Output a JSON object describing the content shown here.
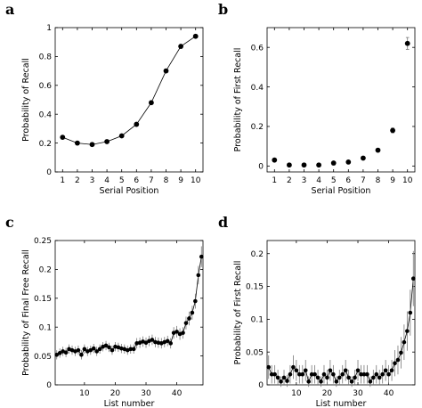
{
  "chart_data": [
    {
      "panel": "a",
      "type": "line",
      "xlabel": "Serial Position",
      "ylabel": "Probability of Recall",
      "xlim": [
        0.5,
        10.5
      ],
      "ylim": [
        0,
        1
      ],
      "xticks": [
        1,
        2,
        3,
        4,
        5,
        6,
        7,
        8,
        9,
        10
      ],
      "yticks": [
        0,
        0.2,
        0.4,
        0.6,
        0.8,
        1
      ],
      "ytick_labels": [
        "0",
        "0.2",
        "0.4",
        "0.6",
        "0.8",
        "1"
      ],
      "x": [
        1,
        2,
        3,
        4,
        5,
        6,
        7,
        8,
        9,
        10
      ],
      "y": [
        0.24,
        0.2,
        0.19,
        0.21,
        0.25,
        0.33,
        0.48,
        0.7,
        0.87,
        0.94
      ],
      "error": [
        0.012,
        0.01,
        0.01,
        0.01,
        0.01,
        0.012,
        0.012,
        0.012,
        0.01,
        0.01
      ],
      "connect": true,
      "grid": false
    },
    {
      "panel": "b",
      "type": "scatter",
      "xlabel": "Serial Position",
      "ylabel": "Probability of First Recall",
      "xlim": [
        0.5,
        10.5
      ],
      "ylim": [
        -0.03,
        0.7
      ],
      "xticks": [
        1,
        2,
        3,
        4,
        5,
        6,
        7,
        8,
        9,
        10
      ],
      "yticks": [
        0,
        0.2,
        0.4,
        0.6
      ],
      "ytick_labels": [
        "0",
        "0.2",
        "0.4",
        "0.6"
      ],
      "x": [
        1,
        2,
        3,
        4,
        5,
        6,
        7,
        8,
        9,
        10
      ],
      "y": [
        0.03,
        0.005,
        0.005,
        0.005,
        0.015,
        0.02,
        0.04,
        0.08,
        0.18,
        0.62
      ],
      "error": [
        0.004,
        0.003,
        0.003,
        0.003,
        0.004,
        0.004,
        0.006,
        0.008,
        0.012,
        0.03
      ],
      "connect": false,
      "grid": false
    },
    {
      "panel": "c",
      "type": "line",
      "xlabel": "List number",
      "ylabel": "Probability of Final Free Recall",
      "xlim": [
        0.5,
        48.5
      ],
      "ylim": [
        0,
        0.25
      ],
      "xticks": [
        10,
        20,
        30,
        40
      ],
      "yticks": [
        0,
        0.05,
        0.1,
        0.15,
        0.2,
        0.25
      ],
      "ytick_labels": [
        "0",
        "0.05",
        "0.1",
        "0.15",
        "0.2",
        "0.25"
      ],
      "x": [
        1,
        2,
        3,
        4,
        5,
        6,
        7,
        8,
        9,
        10,
        11,
        12,
        13,
        14,
        15,
        16,
        17,
        18,
        19,
        20,
        21,
        22,
        23,
        24,
        25,
        26,
        27,
        28,
        29,
        30,
        31,
        32,
        33,
        34,
        35,
        36,
        37,
        38,
        39,
        40,
        41,
        42,
        43,
        44,
        45,
        46,
        47,
        48
      ],
      "y": [
        0.052,
        0.055,
        0.058,
        0.056,
        0.062,
        0.06,
        0.058,
        0.06,
        0.052,
        0.062,
        0.058,
        0.06,
        0.063,
        0.058,
        0.062,
        0.066,
        0.068,
        0.065,
        0.06,
        0.066,
        0.065,
        0.063,
        0.062,
        0.06,
        0.062,
        0.062,
        0.072,
        0.073,
        0.075,
        0.073,
        0.076,
        0.078,
        0.074,
        0.073,
        0.072,
        0.074,
        0.076,
        0.072,
        0.09,
        0.092,
        0.088,
        0.09,
        0.107,
        0.115,
        0.125,
        0.145,
        0.19,
        0.222
      ],
      "error": [
        0.008,
        0.008,
        0.008,
        0.008,
        0.008,
        0.008,
        0.008,
        0.008,
        0.008,
        0.008,
        0.008,
        0.008,
        0.008,
        0.008,
        0.008,
        0.008,
        0.008,
        0.008,
        0.008,
        0.008,
        0.008,
        0.008,
        0.008,
        0.008,
        0.008,
        0.008,
        0.009,
        0.009,
        0.009,
        0.009,
        0.009,
        0.009,
        0.009,
        0.009,
        0.009,
        0.009,
        0.009,
        0.009,
        0.01,
        0.01,
        0.01,
        0.01,
        0.011,
        0.012,
        0.012,
        0.013,
        0.016,
        0.018
      ],
      "connect": true,
      "grid": false
    },
    {
      "panel": "d",
      "type": "line",
      "xlabel": "List number",
      "ylabel": "Probability of First Recall",
      "xlim": [
        0.5,
        48.5
      ],
      "ylim": [
        0,
        0.22
      ],
      "xticks": [
        10,
        20,
        30,
        40
      ],
      "yticks": [
        0,
        0.05,
        0.1,
        0.15,
        0.2
      ],
      "ytick_labels": [
        "0",
        "0.05",
        "0.1",
        "0.15",
        "0.2"
      ],
      "x": [
        1,
        2,
        3,
        4,
        5,
        6,
        7,
        8,
        9,
        10,
        11,
        12,
        13,
        14,
        15,
        16,
        17,
        18,
        19,
        20,
        21,
        22,
        23,
        24,
        25,
        26,
        27,
        28,
        29,
        30,
        31,
        32,
        33,
        34,
        35,
        36,
        37,
        38,
        39,
        40,
        41,
        42,
        43,
        44,
        45,
        46,
        47,
        48
      ],
      "y": [
        0.027,
        0.016,
        0.016,
        0.011,
        0.005,
        0.011,
        0.006,
        0.016,
        0.027,
        0.022,
        0.016,
        0.016,
        0.022,
        0.005,
        0.016,
        0.016,
        0.011,
        0.005,
        0.016,
        0.011,
        0.022,
        0.016,
        0.005,
        0.011,
        0.016,
        0.022,
        0.011,
        0.005,
        0.011,
        0.022,
        0.016,
        0.016,
        0.016,
        0.005,
        0.011,
        0.016,
        0.011,
        0.016,
        0.022,
        0.016,
        0.022,
        0.033,
        0.038,
        0.049,
        0.065,
        0.082,
        0.11,
        0.162
      ],
      "error": [
        0.018,
        0.014,
        0.014,
        0.012,
        0.008,
        0.012,
        0.009,
        0.014,
        0.018,
        0.016,
        0.014,
        0.014,
        0.016,
        0.008,
        0.014,
        0.014,
        0.012,
        0.008,
        0.014,
        0.012,
        0.016,
        0.014,
        0.008,
        0.012,
        0.014,
        0.016,
        0.012,
        0.008,
        0.012,
        0.016,
        0.014,
        0.014,
        0.014,
        0.008,
        0.012,
        0.014,
        0.012,
        0.014,
        0.016,
        0.014,
        0.016,
        0.02,
        0.022,
        0.024,
        0.027,
        0.03,
        0.035,
        0.042
      ],
      "connect": true,
      "grid": false
    }
  ],
  "colors": {
    "marker": "#000000",
    "line": "#000000",
    "errorbar": "#777777",
    "axis": "#000000",
    "background": "#ffffff"
  }
}
